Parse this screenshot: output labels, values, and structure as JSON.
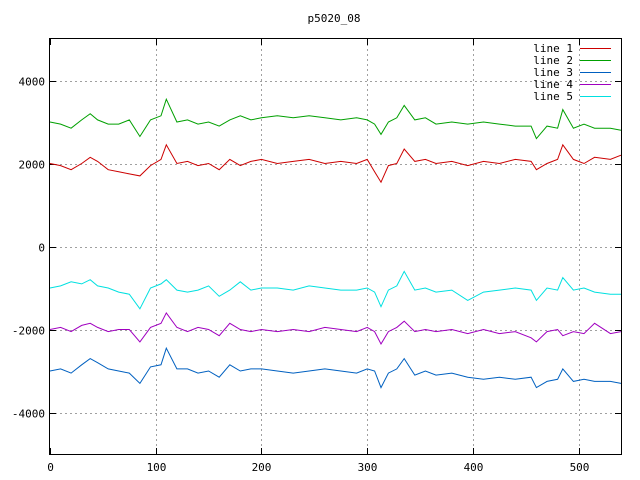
{
  "chart_data": {
    "type": "line",
    "title": "p5020_08",
    "xlim": [
      0,
      540
    ],
    "ylim": [
      -5000,
      5000
    ],
    "xticks": [
      0,
      100,
      200,
      300,
      400,
      500
    ],
    "yticks": [
      -4000,
      -2000,
      0,
      2000,
      4000
    ],
    "grid": true,
    "legend_position": "top-right",
    "series": [
      {
        "name": "line 1",
        "color": "#cc0000",
        "x": [
          0,
          10,
          20,
          30,
          38,
          45,
          55,
          65,
          75,
          85,
          95,
          105,
          110,
          120,
          130,
          140,
          150,
          160,
          170,
          180,
          190,
          200,
          215,
          230,
          245,
          260,
          275,
          290,
          300,
          307,
          313,
          320,
          328,
          335,
          345,
          355,
          365,
          380,
          395,
          410,
          425,
          440,
          455,
          460,
          470,
          480,
          485,
          495,
          505,
          515,
          530,
          540
        ],
        "y": [
          2000,
          1950,
          1850,
          2000,
          2150,
          2050,
          1850,
          1800,
          1750,
          1700,
          1950,
          2100,
          2450,
          2000,
          2050,
          1950,
          2000,
          1850,
          2100,
          1950,
          2050,
          2100,
          2000,
          2050,
          2100,
          2000,
          2050,
          2000,
          2100,
          1800,
          1550,
          1950,
          2000,
          2350,
          2050,
          2100,
          2000,
          2050,
          1950,
          2050,
          2000,
          2100,
          2050,
          1850,
          2000,
          2100,
          2450,
          2100,
          2000,
          2150,
          2100,
          2200
        ]
      },
      {
        "name": "line 2",
        "color": "#00a000",
        "x": [
          0,
          10,
          20,
          30,
          38,
          45,
          55,
          65,
          75,
          85,
          95,
          105,
          110,
          120,
          130,
          140,
          150,
          160,
          170,
          180,
          190,
          200,
          215,
          230,
          245,
          260,
          275,
          290,
          300,
          307,
          313,
          320,
          328,
          335,
          345,
          355,
          365,
          380,
          395,
          410,
          425,
          440,
          455,
          460,
          470,
          480,
          485,
          495,
          505,
          515,
          530,
          540
        ],
        "y": [
          3000,
          2950,
          2850,
          3050,
          3200,
          3050,
          2950,
          2950,
          3050,
          2650,
          3050,
          3150,
          3550,
          3000,
          3050,
          2950,
          3000,
          2900,
          3050,
          3150,
          3050,
          3100,
          3150,
          3100,
          3150,
          3100,
          3050,
          3100,
          3050,
          2950,
          2700,
          3000,
          3100,
          3400,
          3050,
          3100,
          2950,
          3000,
          2950,
          3000,
          2950,
          2900,
          2900,
          2600,
          2900,
          2850,
          3300,
          2850,
          2950,
          2850,
          2850,
          2800
        ]
      },
      {
        "name": "line 3",
        "color": "#0060c0",
        "x": [
          0,
          10,
          20,
          30,
          38,
          45,
          55,
          65,
          75,
          85,
          95,
          105,
          110,
          120,
          130,
          140,
          150,
          160,
          170,
          180,
          190,
          200,
          215,
          230,
          245,
          260,
          275,
          290,
          300,
          307,
          313,
          320,
          328,
          335,
          345,
          355,
          365,
          380,
          395,
          410,
          425,
          440,
          455,
          460,
          470,
          480,
          485,
          495,
          505,
          515,
          530,
          540
        ],
        "y": [
          -3000,
          -2950,
          -3050,
          -2850,
          -2700,
          -2800,
          -2950,
          -3000,
          -3050,
          -3300,
          -2900,
          -2850,
          -2450,
          -2950,
          -2950,
          -3050,
          -3000,
          -3150,
          -2850,
          -3000,
          -2950,
          -2950,
          -3000,
          -3050,
          -3000,
          -2950,
          -3000,
          -3050,
          -2950,
          -3000,
          -3400,
          -3050,
          -2950,
          -2700,
          -3100,
          -3000,
          -3100,
          -3050,
          -3150,
          -3200,
          -3150,
          -3200,
          -3150,
          -3400,
          -3250,
          -3200,
          -2950,
          -3250,
          -3200,
          -3250,
          -3250,
          -3300
        ]
      },
      {
        "name": "line 4",
        "color": "#a000c0",
        "x": [
          0,
          10,
          20,
          30,
          38,
          45,
          55,
          65,
          75,
          85,
          95,
          105,
          110,
          120,
          130,
          140,
          150,
          160,
          170,
          180,
          190,
          200,
          215,
          230,
          245,
          260,
          275,
          290,
          300,
          307,
          313,
          320,
          328,
          335,
          345,
          355,
          365,
          380,
          395,
          410,
          425,
          440,
          455,
          460,
          470,
          480,
          485,
          495,
          505,
          515,
          530,
          540
        ],
        "y": [
          -2000,
          -1950,
          -2050,
          -1900,
          -1850,
          -1950,
          -2050,
          -2000,
          -2000,
          -2300,
          -1950,
          -1850,
          -1600,
          -1950,
          -2050,
          -1950,
          -2000,
          -2150,
          -1850,
          -2000,
          -2050,
          -2000,
          -2050,
          -2000,
          -2050,
          -1950,
          -2000,
          -2050,
          -1950,
          -2050,
          -2350,
          -2050,
          -1950,
          -1800,
          -2050,
          -2000,
          -2050,
          -2000,
          -2100,
          -2000,
          -2100,
          -2050,
          -2200,
          -2300,
          -2050,
          -2000,
          -2150,
          -2050,
          -2100,
          -1850,
          -2100,
          -2050
        ]
      },
      {
        "name": "line 5",
        "color": "#00e0e0",
        "x": [
          0,
          10,
          20,
          30,
          38,
          45,
          55,
          65,
          75,
          85,
          95,
          105,
          110,
          120,
          130,
          140,
          150,
          160,
          170,
          180,
          190,
          200,
          215,
          230,
          245,
          260,
          275,
          290,
          300,
          307,
          313,
          320,
          328,
          335,
          345,
          355,
          365,
          380,
          395,
          410,
          425,
          440,
          455,
          460,
          470,
          480,
          485,
          495,
          505,
          515,
          530,
          540
        ],
        "y": [
          -1000,
          -950,
          -850,
          -900,
          -800,
          -950,
          -1000,
          -1100,
          -1150,
          -1500,
          -1000,
          -900,
          -800,
          -1050,
          -1100,
          -1050,
          -950,
          -1200,
          -1050,
          -850,
          -1050,
          -1000,
          -1000,
          -1050,
          -950,
          -1000,
          -1050,
          -1050,
          -1000,
          -1100,
          -1450,
          -1050,
          -950,
          -600,
          -1050,
          -1000,
          -1100,
          -1050,
          -1300,
          -1100,
          -1050,
          -1000,
          -1050,
          -1300,
          -1000,
          -1050,
          -750,
          -1050,
          -1000,
          -1100,
          -1150,
          -1150
        ]
      }
    ]
  }
}
